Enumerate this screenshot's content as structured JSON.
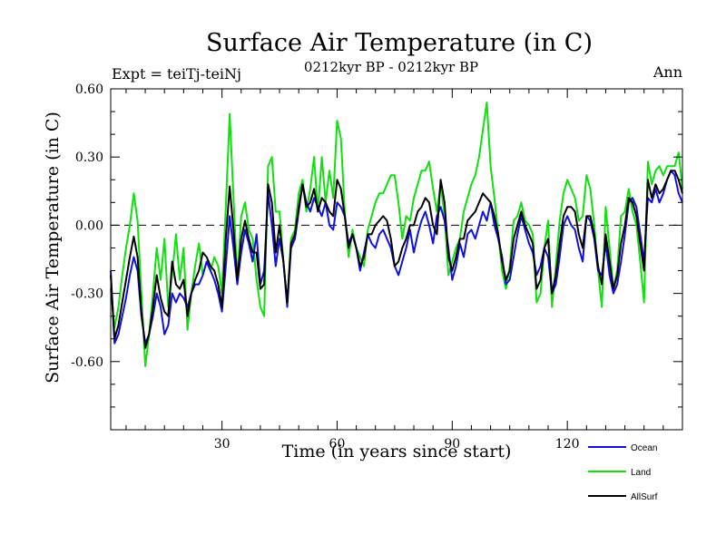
{
  "chart_data": {
    "type": "line",
    "title": "Surface Air Temperature (in C)",
    "subtitle": "0212kyr BP - 0212kyr BP",
    "experiment_label": "Expt = teiTj-teiNj",
    "period_label": "Ann",
    "xlabel": "Time (in years since start)",
    "ylabel": "Surface Air Temperature (in C)",
    "xlim": [
      1,
      150
    ],
    "ylim": [
      -0.9,
      0.6
    ],
    "xticks": [
      30,
      60,
      90,
      120
    ],
    "yticks": [
      0.6,
      0.3,
      0.0,
      -0.3,
      -0.6
    ],
    "ytick_labels": [
      "0.60",
      "0.30",
      "0.00",
      "-0.30",
      "-0.60"
    ],
    "xtick_labels": [
      "30",
      "60",
      "90",
      "120"
    ],
    "reference_line": 0.0,
    "series": [
      {
        "name": "Ocean",
        "color": "#1010e0",
        "values": [
          -0.2,
          -0.52,
          -0.48,
          -0.4,
          -0.32,
          -0.22,
          -0.14,
          -0.2,
          -0.4,
          -0.52,
          -0.48,
          -0.4,
          -0.3,
          -0.36,
          -0.48,
          -0.44,
          -0.3,
          -0.34,
          -0.3,
          -0.32,
          -0.36,
          -0.3,
          -0.26,
          -0.26,
          -0.22,
          -0.16,
          -0.2,
          -0.24,
          -0.3,
          -0.38,
          -0.18,
          0.04,
          -0.1,
          -0.26,
          -0.12,
          -0.02,
          -0.08,
          -0.16,
          -0.04,
          -0.26,
          -0.2,
          0.14,
          0.0,
          -0.18,
          -0.06,
          -0.16,
          -0.36,
          -0.1,
          -0.06,
          0.06,
          0.18,
          0.1,
          0.06,
          0.12,
          0.08,
          0.04,
          0.1,
          0.0,
          -0.02,
          0.1,
          0.08,
          0.04,
          -0.08,
          -0.04,
          -0.1,
          -0.2,
          -0.12,
          -0.04,
          -0.08,
          -0.1,
          -0.04,
          -0.02,
          -0.06,
          -0.1,
          -0.18,
          -0.22,
          -0.16,
          -0.1,
          -0.02,
          -0.12,
          -0.04,
          0.02,
          0.06,
          0.0,
          -0.08,
          0.04,
          0.08,
          0.02,
          -0.1,
          -0.24,
          -0.18,
          -0.08,
          -0.14,
          -0.04,
          -0.02,
          -0.06,
          0.0,
          0.06,
          0.02,
          0.1,
          0.0,
          -0.06,
          -0.14,
          -0.26,
          -0.24,
          -0.14,
          -0.04,
          0.04,
          -0.02,
          -0.08,
          -0.12,
          -0.22,
          -0.18,
          -0.1,
          -0.14,
          -0.3,
          -0.26,
          -0.14,
          0.0,
          0.04,
          0.0,
          -0.02,
          -0.1,
          -0.16,
          0.04,
          0.02,
          -0.06,
          -0.2,
          -0.22,
          -0.08,
          -0.22,
          -0.3,
          -0.26,
          -0.16,
          -0.04,
          0.1,
          0.12,
          0.08,
          -0.04,
          -0.16,
          0.12,
          0.1,
          0.16,
          0.1,
          0.14,
          0.2,
          0.24,
          0.22,
          0.14,
          0.1
        ]
      },
      {
        "name": "Land",
        "color": "#10e010",
        "values": [
          -0.28,
          -0.45,
          -0.36,
          -0.22,
          -0.1,
          0.0,
          0.14,
          0.02,
          -0.3,
          -0.62,
          -0.48,
          -0.3,
          -0.1,
          -0.24,
          -0.06,
          -0.36,
          -0.22,
          -0.04,
          -0.24,
          -0.1,
          -0.46,
          -0.3,
          -0.18,
          -0.08,
          -0.22,
          -0.16,
          -0.2,
          -0.14,
          -0.18,
          -0.3,
          0.08,
          0.49,
          0.12,
          -0.24,
          0.04,
          0.1,
          -0.02,
          -0.06,
          -0.24,
          -0.36,
          -0.4,
          0.26,
          0.3,
          0.06,
          0.06,
          -0.16,
          -0.34,
          -0.06,
          -0.02,
          0.14,
          0.2,
          0.06,
          0.16,
          0.3,
          0.06,
          0.3,
          0.1,
          0.24,
          0.12,
          0.46,
          0.38,
          0.06,
          -0.14,
          -0.02,
          -0.1,
          -0.14,
          -0.18,
          -0.02,
          0.04,
          0.1,
          0.14,
          0.14,
          0.18,
          0.22,
          0.22,
          0.1,
          -0.06,
          0.04,
          0.02,
          0.12,
          0.18,
          0.24,
          0.24,
          0.28,
          0.16,
          0.06,
          0.18,
          0.04,
          -0.22,
          -0.16,
          -0.1,
          -0.06,
          0.06,
          0.12,
          0.18,
          0.22,
          0.3,
          0.42,
          0.54,
          0.26,
          0.12,
          -0.04,
          -0.2,
          -0.28,
          -0.18,
          0.02,
          0.04,
          0.1,
          0.02,
          0.0,
          -0.04,
          -0.34,
          -0.3,
          -0.1,
          0.02,
          -0.36,
          -0.18,
          0.02,
          0.14,
          0.2,
          0.16,
          0.12,
          0.02,
          0.04,
          0.22,
          0.16,
          0.0,
          -0.2,
          -0.36,
          0.08,
          -0.1,
          -0.28,
          -0.2,
          0.04,
          0.06,
          0.16,
          0.06,
          0.0,
          -0.16,
          -0.34,
          0.28,
          0.18,
          0.24,
          0.26,
          0.22,
          0.26,
          0.26,
          0.26,
          0.32,
          0.16
        ]
      },
      {
        "name": "AllSurf",
        "color": "#000000",
        "values": [
          -0.22,
          -0.5,
          -0.44,
          -0.34,
          -0.24,
          -0.14,
          -0.05,
          -0.14,
          -0.38,
          -0.54,
          -0.48,
          -0.36,
          -0.22,
          -0.32,
          -0.38,
          -0.4,
          -0.16,
          -0.26,
          -0.28,
          -0.24,
          -0.4,
          -0.3,
          -0.24,
          -0.2,
          -0.12,
          -0.14,
          -0.18,
          -0.2,
          -0.26,
          -0.36,
          -0.06,
          0.17,
          -0.02,
          -0.24,
          -0.06,
          0.02,
          -0.06,
          -0.12,
          -0.12,
          -0.28,
          -0.26,
          0.18,
          0.1,
          -0.12,
          0.0,
          -0.16,
          -0.34,
          -0.08,
          -0.04,
          0.08,
          0.18,
          0.08,
          0.1,
          0.16,
          0.06,
          0.12,
          0.1,
          0.06,
          0.04,
          0.2,
          0.16,
          0.04,
          -0.1,
          -0.04,
          -0.1,
          -0.18,
          -0.14,
          -0.04,
          -0.04,
          0.0,
          0.02,
          0.04,
          0.02,
          -0.06,
          -0.18,
          -0.16,
          -0.1,
          -0.06,
          0.0,
          0.0,
          0.06,
          0.08,
          0.12,
          0.1,
          0.0,
          -0.04,
          0.2,
          0.1,
          -0.14,
          -0.2,
          -0.14,
          -0.06,
          -0.06,
          0.02,
          0.04,
          0.06,
          0.1,
          0.14,
          0.12,
          0.1,
          0.04,
          -0.04,
          -0.16,
          -0.24,
          -0.2,
          -0.06,
          0.0,
          0.06,
          0.0,
          -0.04,
          -0.08,
          -0.28,
          -0.24,
          -0.1,
          -0.06,
          -0.3,
          -0.22,
          -0.08,
          0.04,
          0.08,
          0.08,
          0.06,
          -0.04,
          -0.1,
          0.04,
          0.04,
          -0.04,
          -0.18,
          -0.26,
          -0.04,
          -0.16,
          -0.28,
          -0.22,
          -0.08,
          0.0,
          0.12,
          0.1,
          0.04,
          -0.08,
          -0.2,
          0.2,
          0.12,
          0.18,
          0.14,
          0.16,
          0.2,
          0.24,
          0.24,
          0.2,
          0.14
        ]
      }
    ],
    "legend": [
      {
        "label": "Ocean",
        "color": "#1010e0"
      },
      {
        "label": "Land",
        "color": "#10e010"
      },
      {
        "label": "AllSurf",
        "color": "#000000"
      }
    ]
  }
}
